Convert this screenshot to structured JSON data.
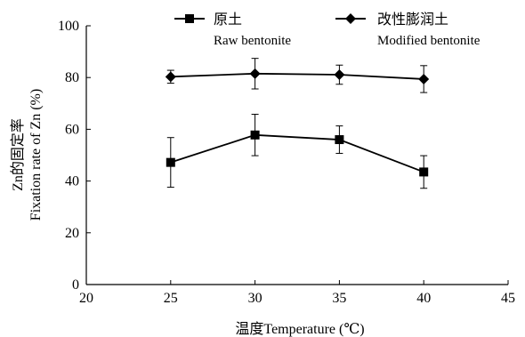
{
  "chart_data": {
    "type": "line",
    "x": [
      25,
      30,
      35,
      40
    ],
    "xlim": [
      20,
      45
    ],
    "ylim": [
      0,
      100
    ],
    "x_ticks": [
      "20",
      "25",
      "30",
      "35",
      "40",
      "45"
    ],
    "y_ticks": [
      "0",
      "20",
      "40",
      "60",
      "80",
      "100"
    ],
    "xlabel": "温度Temperature (℃)",
    "ylabel_cn": "Zn的固定率",
    "ylabel_en": "Fixation rate of Zn (%)",
    "grid": false,
    "legend_placement": "top",
    "series": [
      {
        "key": "raw",
        "name_cn": "原土",
        "name_en": "Raw bentonite",
        "marker": "square",
        "values": [
          47.2,
          57.8,
          56.0,
          43.5
        ],
        "error": [
          9.6,
          8.0,
          5.3,
          6.3
        ]
      },
      {
        "key": "modified",
        "name_cn": "改性膨润土",
        "name_en": "Modified bentonite",
        "marker": "diamond",
        "values": [
          80.3,
          81.5,
          81.1,
          79.4
        ],
        "error": [
          2.5,
          5.9,
          3.7,
          5.2
        ]
      }
    ],
    "colors": {
      "line": "#000000",
      "marker": "#000000"
    }
  }
}
